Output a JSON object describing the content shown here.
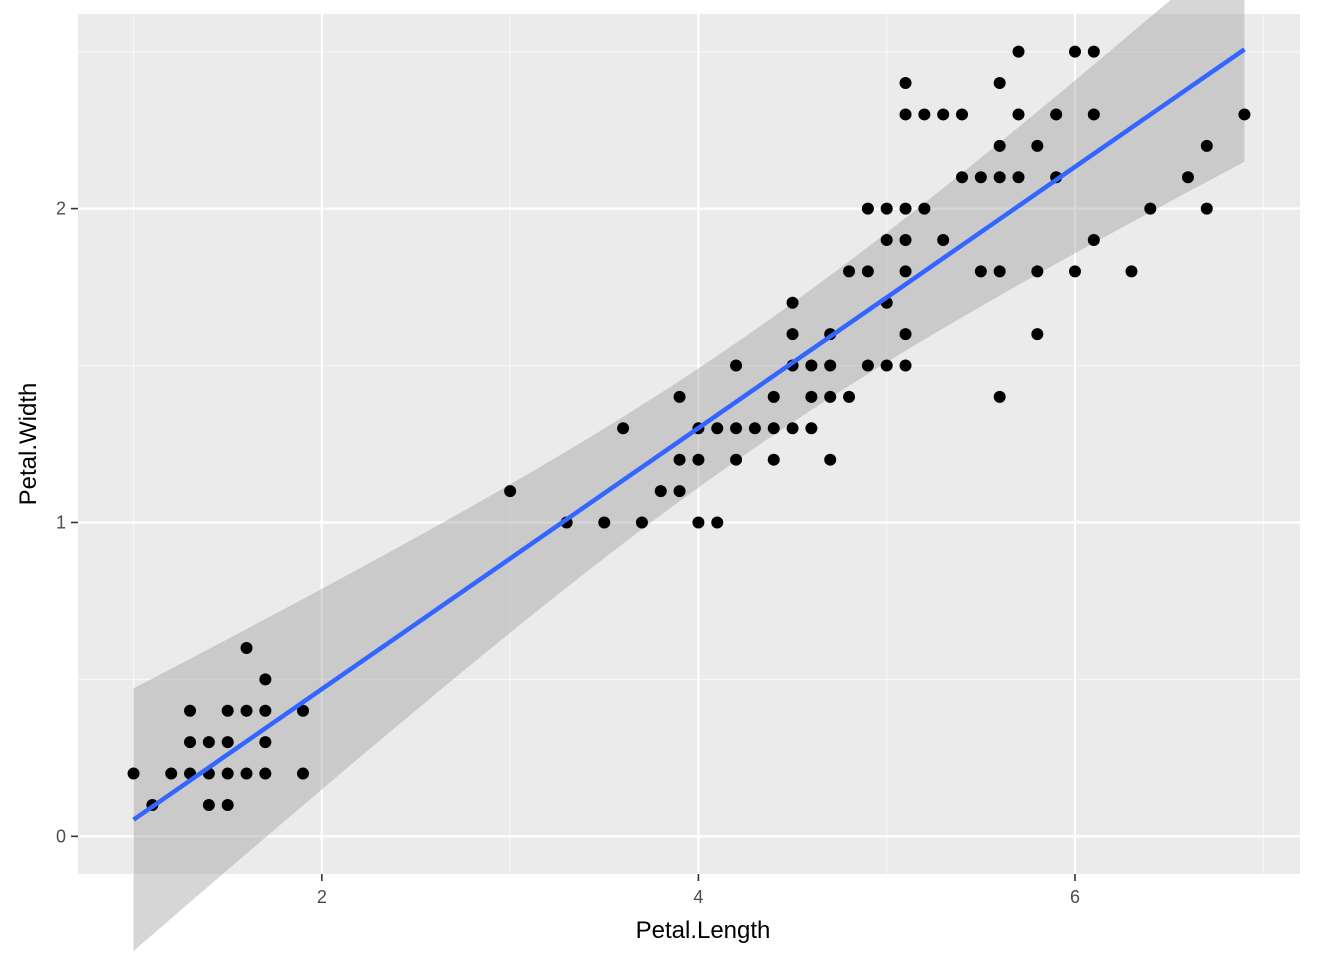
{
  "chart_data": {
    "type": "scatter",
    "title": "",
    "xlabel": "Petal.Length",
    "ylabel": "Petal.Width",
    "xlim": [
      0.705,
      7.195
    ],
    "ylim": [
      -0.12,
      2.62
    ],
    "x_ticks": [
      2,
      4,
      6
    ],
    "y_ticks": [
      0,
      1,
      2
    ],
    "x_tick_labels": [
      "2",
      "4",
      "6"
    ],
    "y_tick_labels": [
      "0",
      "1",
      "2"
    ],
    "grid": true,
    "legend": "none",
    "colors": {
      "panel_background": "#ebebeb",
      "grid_major": "#ffffff",
      "grid_minor": "#f7f7f7",
      "points": "#000000",
      "regression_line": "#3366ff",
      "confidence_band": "#999999"
    },
    "regression": {
      "method": "lm",
      "intercept": -0.363,
      "slope": 0.416,
      "se_band": true
    },
    "points": [
      [
        1.0,
        0.2
      ],
      [
        1.1,
        0.1
      ],
      [
        1.2,
        0.2
      ],
      [
        1.3,
        0.2
      ],
      [
        1.3,
        0.3
      ],
      [
        1.3,
        0.4
      ],
      [
        1.4,
        0.1
      ],
      [
        1.4,
        0.2
      ],
      [
        1.4,
        0.3
      ],
      [
        1.5,
        0.1
      ],
      [
        1.5,
        0.2
      ],
      [
        1.5,
        0.3
      ],
      [
        1.5,
        0.4
      ],
      [
        1.6,
        0.2
      ],
      [
        1.6,
        0.4
      ],
      [
        1.6,
        0.6
      ],
      [
        1.7,
        0.2
      ],
      [
        1.7,
        0.3
      ],
      [
        1.7,
        0.4
      ],
      [
        1.7,
        0.5
      ],
      [
        1.9,
        0.2
      ],
      [
        1.9,
        0.4
      ],
      [
        3.0,
        1.1
      ],
      [
        3.3,
        1.0
      ],
      [
        3.5,
        1.0
      ],
      [
        3.6,
        1.3
      ],
      [
        3.7,
        1.0
      ],
      [
        3.8,
        1.1
      ],
      [
        3.9,
        1.1
      ],
      [
        3.9,
        1.2
      ],
      [
        3.9,
        1.4
      ],
      [
        4.0,
        1.0
      ],
      [
        4.0,
        1.2
      ],
      [
        4.0,
        1.3
      ],
      [
        4.1,
        1.0
      ],
      [
        4.1,
        1.3
      ],
      [
        4.2,
        1.2
      ],
      [
        4.2,
        1.3
      ],
      [
        4.2,
        1.5
      ],
      [
        4.3,
        1.3
      ],
      [
        4.4,
        1.2
      ],
      [
        4.4,
        1.3
      ],
      [
        4.4,
        1.4
      ],
      [
        4.5,
        1.3
      ],
      [
        4.5,
        1.5
      ],
      [
        4.5,
        1.6
      ],
      [
        4.5,
        1.7
      ],
      [
        4.6,
        1.3
      ],
      [
        4.6,
        1.4
      ],
      [
        4.6,
        1.5
      ],
      [
        4.7,
        1.2
      ],
      [
        4.7,
        1.4
      ],
      [
        4.7,
        1.5
      ],
      [
        4.7,
        1.6
      ],
      [
        4.8,
        1.4
      ],
      [
        4.8,
        1.8
      ],
      [
        4.9,
        1.5
      ],
      [
        4.9,
        1.8
      ],
      [
        4.9,
        2.0
      ],
      [
        5.0,
        1.5
      ],
      [
        5.0,
        1.7
      ],
      [
        5.0,
        1.9
      ],
      [
        5.0,
        2.0
      ],
      [
        5.1,
        1.5
      ],
      [
        5.1,
        1.6
      ],
      [
        5.1,
        1.8
      ],
      [
        5.1,
        1.9
      ],
      [
        5.1,
        2.0
      ],
      [
        5.1,
        2.3
      ],
      [
        5.1,
        2.4
      ],
      [
        5.2,
        2.0
      ],
      [
        5.2,
        2.3
      ],
      [
        5.3,
        1.9
      ],
      [
        5.3,
        2.3
      ],
      [
        5.4,
        2.1
      ],
      [
        5.4,
        2.3
      ],
      [
        5.5,
        1.8
      ],
      [
        5.5,
        2.1
      ],
      [
        5.6,
        1.4
      ],
      [
        5.6,
        1.8
      ],
      [
        5.6,
        2.1
      ],
      [
        5.6,
        2.2
      ],
      [
        5.6,
        2.4
      ],
      [
        5.7,
        2.1
      ],
      [
        5.7,
        2.3
      ],
      [
        5.7,
        2.5
      ],
      [
        5.8,
        1.6
      ],
      [
        5.8,
        1.8
      ],
      [
        5.8,
        2.2
      ],
      [
        5.9,
        2.1
      ],
      [
        5.9,
        2.3
      ],
      [
        6.0,
        1.8
      ],
      [
        6.0,
        2.5
      ],
      [
        6.1,
        1.9
      ],
      [
        6.1,
        2.3
      ],
      [
        6.1,
        2.5
      ],
      [
        6.3,
        1.8
      ],
      [
        6.4,
        2.0
      ],
      [
        6.6,
        2.1
      ],
      [
        6.7,
        2.0
      ],
      [
        6.7,
        2.2
      ],
      [
        6.9,
        2.3
      ]
    ]
  }
}
